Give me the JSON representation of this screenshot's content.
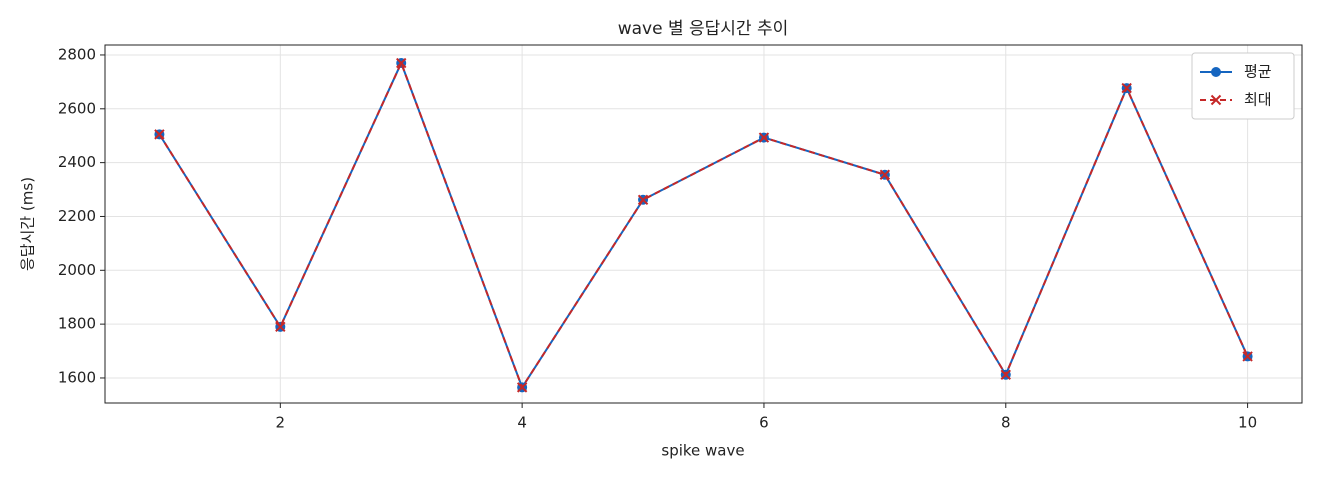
{
  "chart_data": {
    "type": "line",
    "title": "wave 별 응답시간 추이",
    "x_label": "spike wave",
    "y_label": "응답시간 (ms)",
    "x": [
      1,
      2,
      3,
      4,
      5,
      6,
      7,
      8,
      9,
      10
    ],
    "series": [
      {
        "name": "평균",
        "color": "#1565c0",
        "marker": "circle",
        "dash": false,
        "values": [
          2505,
          1790,
          2770,
          1565,
          2262,
          2493,
          2355,
          1612,
          2677,
          1680
        ]
      },
      {
        "name": "최대",
        "color": "#c62828",
        "marker": "x",
        "dash": true,
        "values": [
          2505,
          1790,
          2770,
          1565,
          2262,
          2493,
          2355,
          1612,
          2677,
          1680
        ]
      }
    ],
    "xlim": [
      0.55,
      10.45
    ],
    "xticks": [
      2,
      4,
      6,
      8,
      10
    ],
    "ylim": [
      1507,
      2837
    ],
    "yticks": [
      1600,
      1800,
      2000,
      2200,
      2400,
      2600,
      2800
    ],
    "grid": true,
    "legend": "upper right"
  }
}
